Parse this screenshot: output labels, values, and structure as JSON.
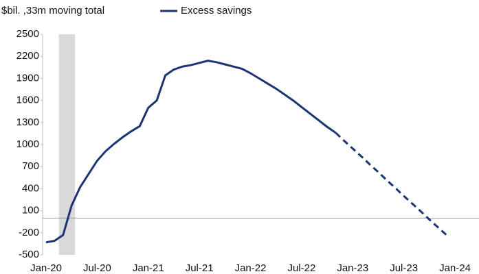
{
  "chart_data": {
    "type": "line",
    "title": "$bil. ,33m moving total",
    "categories": [
      "Jan-20",
      null,
      null,
      null,
      null,
      null,
      "Jul-20",
      null,
      null,
      null,
      null,
      null,
      "Jan-21",
      null,
      null,
      null,
      null,
      null,
      "Jul-21",
      null,
      null,
      null,
      null,
      null,
      "Jan-22",
      null,
      null,
      null,
      null,
      null,
      "Jul-22",
      null,
      null,
      null,
      null,
      null,
      "Jan-23",
      null,
      null,
      null,
      null,
      null,
      "Jul-23",
      null,
      null,
      null,
      null,
      null,
      "Jan-24"
    ],
    "series": [
      {
        "name": "Excess savings",
        "color": "#1c3473",
        "values": [
          -330,
          -310,
          -230,
          170,
          420,
          600,
          780,
          910,
          1010,
          1100,
          1180,
          1250,
          1500,
          1600,
          1940,
          2020,
          2060,
          2080,
          2110,
          2140,
          2120,
          2090,
          2060,
          2030,
          1970,
          1900,
          1830,
          1760,
          1680,
          1600,
          1510,
          1420,
          1330,
          1240,
          1160,
          1050,
          945,
          840,
          730,
          625,
          515,
          410,
          300,
          195,
          90,
          -20,
          -125,
          -230,
          null
        ],
        "dashed_from": 34
      }
    ],
    "ylim": [
      -500,
      2500
    ],
    "yticks": [
      -500,
      -200,
      100,
      400,
      700,
      1000,
      1300,
      1600,
      1900,
      2200,
      2500
    ],
    "shaded_span": [
      1.5,
      3.4
    ],
    "zero_line": 0,
    "grid": false,
    "legend": "top"
  }
}
